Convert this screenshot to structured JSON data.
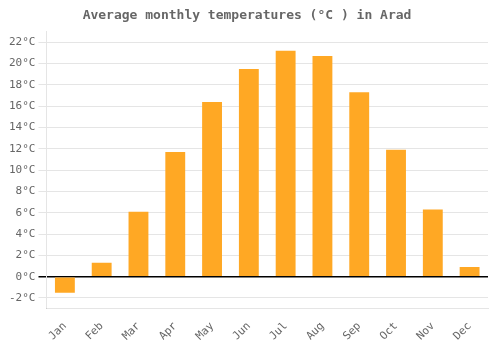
{
  "chart_data": {
    "type": "bar",
    "title": "Average monthly temperatures (°C ) in Arad",
    "categories": [
      "Jan",
      "Feb",
      "Mar",
      "Apr",
      "May",
      "Jun",
      "Jul",
      "Aug",
      "Sep",
      "Oct",
      "Nov",
      "Dec"
    ],
    "values": [
      -1.5,
      1.3,
      6.1,
      11.7,
      16.4,
      19.5,
      21.2,
      20.7,
      17.3,
      11.9,
      6.3,
      0.9
    ],
    "color": "#FFA824",
    "ylim": [
      -3,
      23
    ],
    "yticks": [
      {
        "value": -2,
        "label": "-2°C"
      },
      {
        "value": 0,
        "label": "0°C"
      },
      {
        "value": 2,
        "label": "2°C"
      },
      {
        "value": 4,
        "label": "4°C"
      },
      {
        "value": 6,
        "label": "6°C"
      },
      {
        "value": 8,
        "label": "8°C"
      },
      {
        "value": 10,
        "label": "10°C"
      },
      {
        "value": 12,
        "label": "12°C"
      },
      {
        "value": 14,
        "label": "14°C"
      },
      {
        "value": 16,
        "label": "16°C"
      },
      {
        "value": 18,
        "label": "18°C"
      },
      {
        "value": 20,
        "label": "20°C"
      },
      {
        "value": 22,
        "label": "22°C"
      }
    ],
    "grid": true
  }
}
